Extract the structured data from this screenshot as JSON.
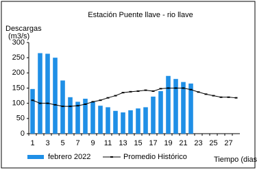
{
  "chart_data": {
    "type": "bar",
    "title": "Estación Puente llave - rio llave",
    "y_label_line1": "Descargas",
    "y_label_line2": "(m3/s)",
    "x_label": "Tiempo (dias)",
    "categories": [
      1,
      null,
      3,
      null,
      5,
      null,
      7,
      null,
      9,
      null,
      11,
      null,
      13,
      null,
      15,
      null,
      17,
      null,
      19,
      null,
      21,
      null,
      23,
      null,
      25,
      null,
      27,
      null
    ],
    "series": [
      {
        "name": "febrero 2022",
        "type": "bar",
        "color": "#1f8fe6",
        "values": [
          147,
          265,
          263,
          250,
          175,
          120,
          105,
          115,
          105,
          92,
          87,
          75,
          70,
          77,
          83,
          87,
          122,
          140,
          190,
          180,
          170,
          165,
          null,
          null,
          null,
          null,
          null,
          null
        ]
      },
      {
        "name": "Promedio Histórico",
        "type": "line",
        "color": "#000000",
        "values": [
          110,
          100,
          100,
          95,
          90,
          90,
          92,
          97,
          105,
          110,
          118,
          125,
          135,
          138,
          140,
          143,
          140,
          148,
          150,
          150,
          150,
          145,
          137,
          130,
          125,
          120,
          120,
          118
        ]
      }
    ],
    "ylim": [
      0,
      300
    ],
    "yticks": [
      0,
      50,
      100,
      150,
      200,
      250,
      300
    ],
    "legend": "bottom"
  }
}
